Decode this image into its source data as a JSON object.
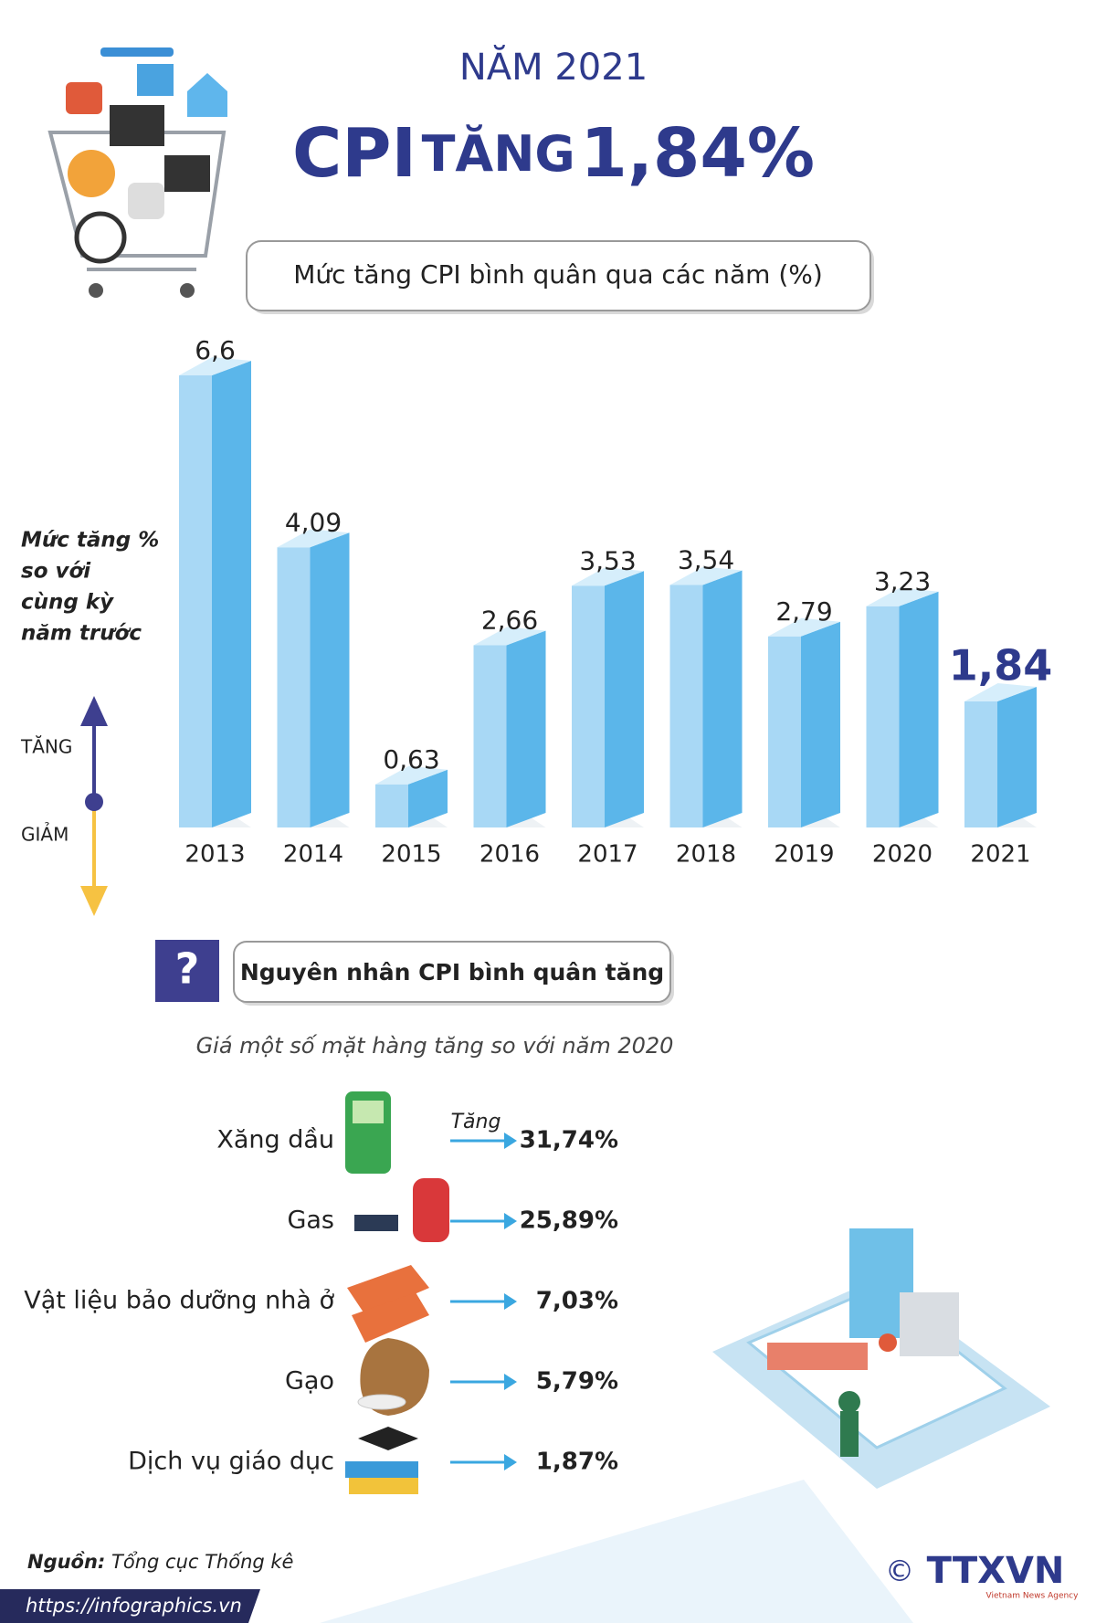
{
  "header": {
    "year_title": "NĂM 2021",
    "headline_cpi": "CPI",
    "headline_verb": "TĂNG",
    "headline_value": "1,84%"
  },
  "chart_data": {
    "type": "bar3d",
    "title": "Mức tăng CPI bình quân qua các năm (%)",
    "annotation": [
      "Mức tăng %",
      "so với",
      "cùng kỳ",
      "năm trước"
    ],
    "up_label": "TĂNG",
    "down_label": "GIẢM",
    "categories": [
      "2013",
      "2014",
      "2015",
      "2016",
      "2017",
      "2018",
      "2019",
      "2020",
      "2021"
    ],
    "values": [
      6.6,
      4.09,
      0.63,
      2.66,
      3.53,
      3.54,
      2.79,
      3.23,
      1.84
    ],
    "value_labels": [
      "6,6",
      "4,09",
      "0,63",
      "2,66",
      "3,53",
      "3,54",
      "2,79",
      "3,23",
      "1,84"
    ],
    "color": "#5bb6ea"
  },
  "causes": {
    "title": "Nguyên nhân CPI bình quân tăng",
    "subtitle": "Giá một số mặt hàng tăng so với năm 2020",
    "increase_label": "Tăng",
    "items": [
      {
        "name": "Xăng dầu",
        "value": "31,74%"
      },
      {
        "name": "Gas",
        "value": "25,89%"
      },
      {
        "name": "Vật liệu bảo dưỡng nhà ở",
        "value": "7,03%"
      },
      {
        "name": "Gạo",
        "value": "5,79%"
      },
      {
        "name": "Dịch vụ giáo dục",
        "value": "1,87%"
      }
    ]
  },
  "footer": {
    "source_label": "Nguồn:",
    "source": "Tổng cục Thống kê",
    "url": "https://infographics.vn",
    "copyright": "©",
    "agency": "TTXVN",
    "agency_sub": "Vietnam News Agency"
  }
}
